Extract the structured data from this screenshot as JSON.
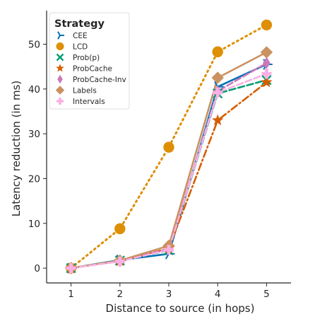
{
  "chart_data": {
    "type": "line",
    "xlabel": "Distance to source (in hops)",
    "ylabel": "Latency reduction (in ms)",
    "x": [
      1,
      2,
      3,
      4,
      5
    ],
    "xlim": [
      0.5,
      5.5
    ],
    "ylim": [
      -3.3,
      57.5
    ],
    "xticks": [
      1,
      2,
      3,
      4,
      5
    ],
    "yticks": [
      0,
      10,
      20,
      30,
      40,
      50
    ],
    "grid": false,
    "legend_title": "Strategy",
    "legend_position": "top-left",
    "series": [
      {
        "name": "CEE",
        "values": [
          0,
          1.8,
          3.2,
          40.5,
          45.5
        ],
        "color": "#0173b2",
        "marker": "tri-right",
        "dash": "solid"
      },
      {
        "name": "LCD",
        "values": [
          0,
          8.8,
          27,
          48.3,
          54.3
        ],
        "color": "#de8f05",
        "marker": "circle",
        "dash": "dotted"
      },
      {
        "name": "Prob(p)",
        "values": [
          0,
          1.7,
          4.0,
          39.0,
          42.0
        ],
        "color": "#029e73",
        "marker": "x",
        "dash": "dashed"
      },
      {
        "name": "ProbCache",
        "values": [
          0,
          1.6,
          4.4,
          33.0,
          41.5
        ],
        "color": "#d55e00",
        "marker": "star",
        "dash": "dashdot"
      },
      {
        "name": "ProbCache-Inv",
        "values": [
          0,
          1.6,
          4.3,
          39.5,
          45.8
        ],
        "color": "#cc78bc",
        "marker": "thin-diamond",
        "dash": "dashed"
      },
      {
        "name": "Labels",
        "values": [
          0,
          1.7,
          5.0,
          42.5,
          48.2
        ],
        "color": "#ca9161",
        "marker": "diamond",
        "dash": "solid"
      },
      {
        "name": "Intervals",
        "values": [
          0,
          1.5,
          4.1,
          39.2,
          43.4
        ],
        "color": "#fbafe4",
        "marker": "plus",
        "dash": "dashed"
      }
    ]
  }
}
